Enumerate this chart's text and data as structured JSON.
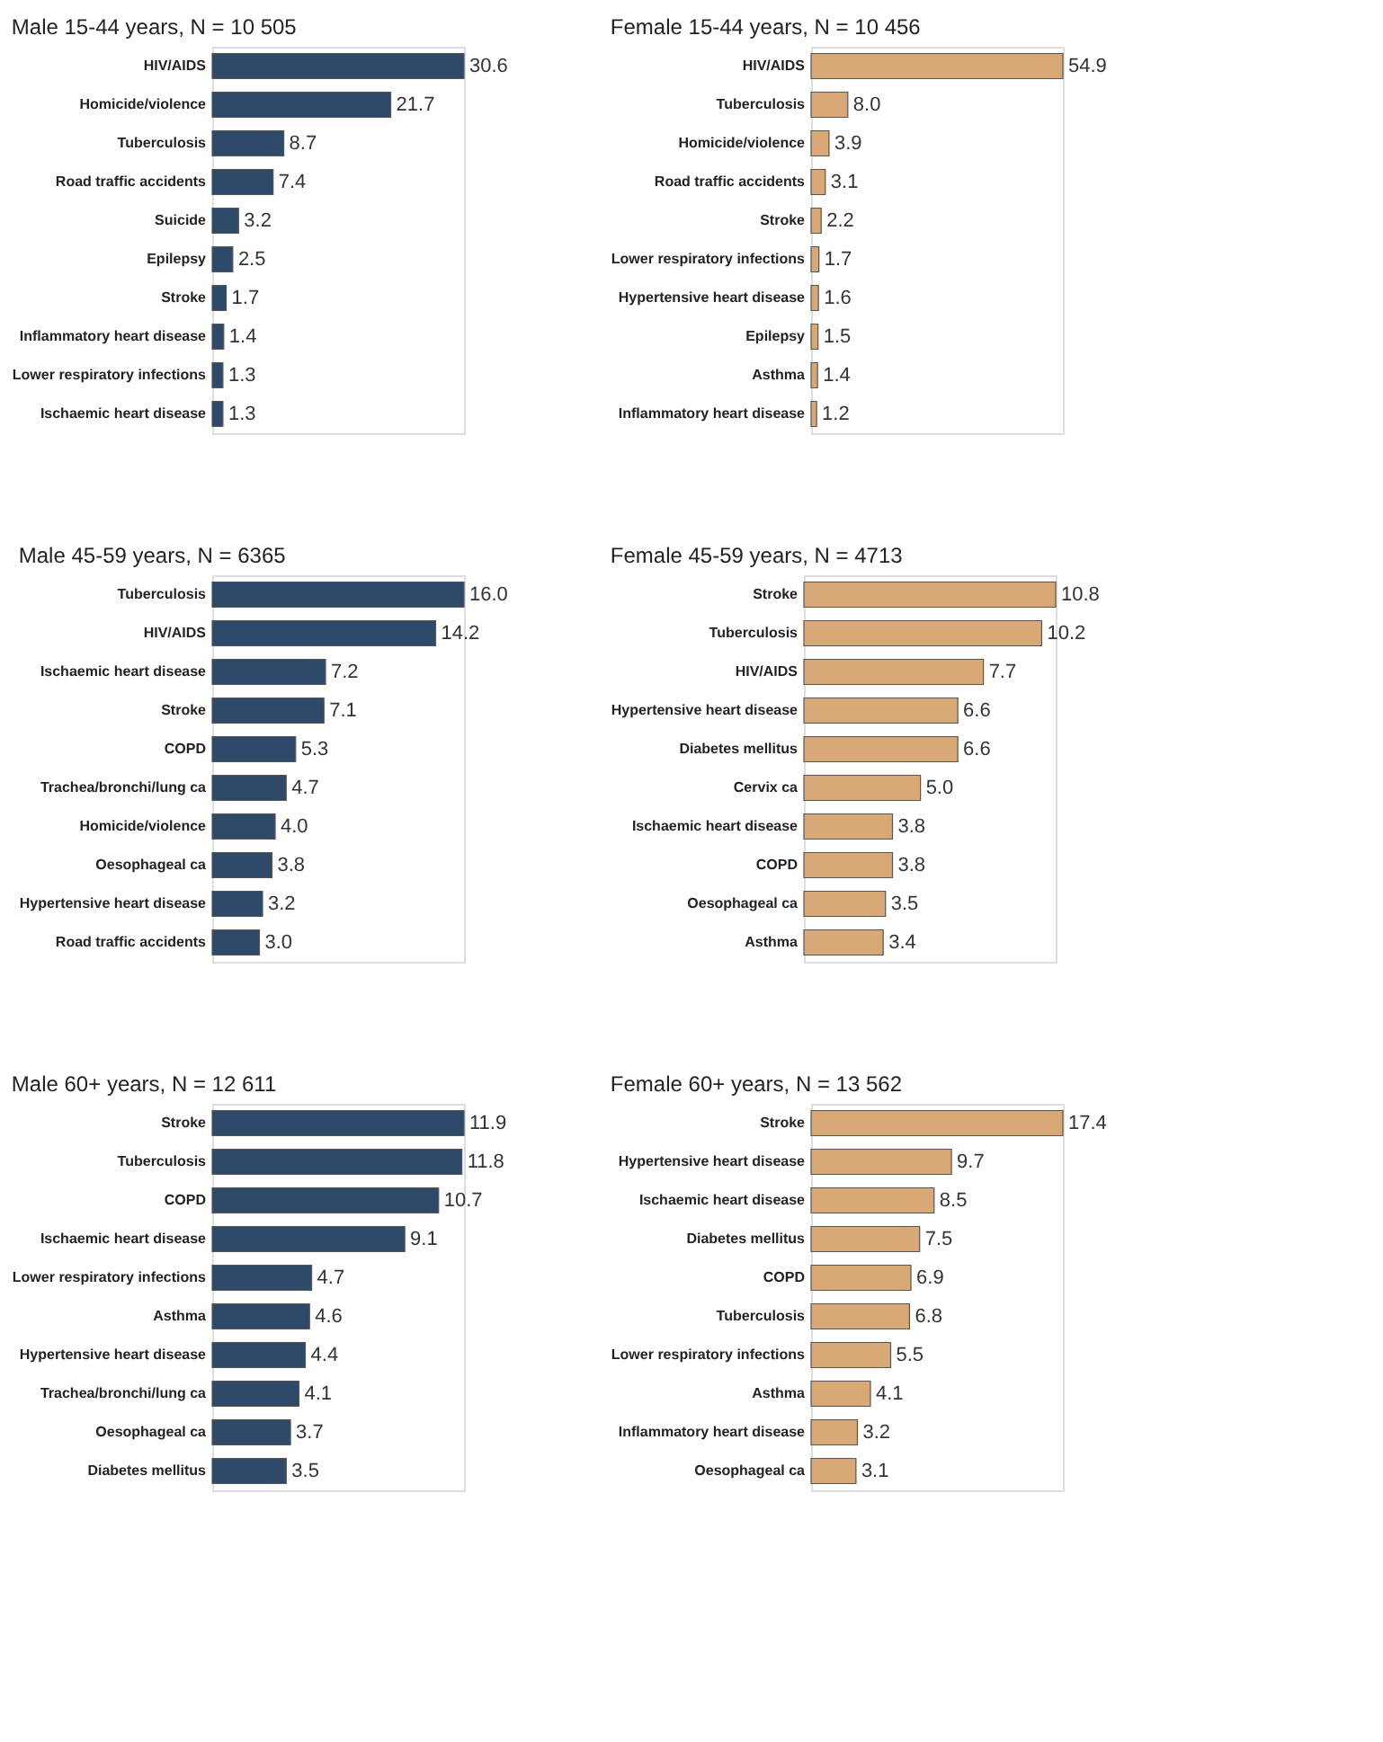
{
  "chart_data": [
    {
      "type": "bar",
      "orientation": "horizontal",
      "title": "Male 15-44 years, N = 10 505",
      "categories": [
        "HIV/AIDS",
        "Homicide/violence",
        "Tuberculosis",
        "Road traffic accidents",
        "Suicide",
        "Epilepsy",
        "Stroke",
        "Inflammatory heart disease",
        "Lower respiratory infections",
        "Ischaemic heart disease"
      ],
      "values": [
        30.6,
        21.7,
        8.7,
        7.4,
        3.2,
        2.5,
        1.7,
        1.4,
        1.3,
        1.3
      ],
      "value_labels": [
        "30.6",
        "21.7",
        "8.7",
        "7.4",
        "3.2",
        "2.5",
        "1.7",
        "1.4",
        "1.3",
        "1.3"
      ],
      "color": "#2f4a68"
    },
    {
      "type": "bar",
      "orientation": "horizontal",
      "title": "Female 15-44 years, N = 10 456",
      "categories": [
        "HIV/AIDS",
        "Tuberculosis",
        "Homicide/violence",
        "Road traffic accidents",
        "Stroke",
        "Lower respiratory infections",
        "Hypertensive heart disease",
        "Epilepsy",
        "Asthma",
        "Inflammatory heart disease"
      ],
      "values": [
        54.9,
        8.0,
        3.9,
        3.1,
        2.2,
        1.7,
        1.6,
        1.5,
        1.4,
        1.2
      ],
      "value_labels": [
        "54.9",
        "8.0",
        "3.9",
        "3.1",
        "2.2",
        "1.7",
        "1.6",
        "1.5",
        "1.4",
        "1.2"
      ],
      "color": "#d8a877"
    },
    {
      "type": "bar",
      "orientation": "horizontal",
      "title": "Male 45-59 years, N = 6365",
      "categories": [
        "Tuberculosis",
        "HIV/AIDS",
        "Ischaemic heart disease",
        "Stroke",
        "COPD",
        "Trachea/bronchi/lung ca",
        "Homicide/violence",
        "Oesophageal ca",
        "Hypertensive heart disease",
        "Road traffic accidents"
      ],
      "values": [
        16.0,
        14.2,
        7.2,
        7.1,
        5.3,
        4.7,
        4.0,
        3.8,
        3.2,
        3.0
      ],
      "value_labels": [
        "16.0",
        "14.2",
        "7.2",
        "7.1",
        "5.3",
        "4.7",
        "4.0",
        "3.8",
        "3.2",
        "3.0"
      ],
      "color": "#2f4a68"
    },
    {
      "type": "bar",
      "orientation": "horizontal",
      "title": "Female 45-59 years, N = 4713",
      "categories": [
        "Stroke",
        "Tuberculosis",
        "HIV/AIDS",
        "Hypertensive heart disease",
        "Diabetes mellitus",
        "Cervix ca",
        "Ischaemic heart disease",
        "COPD",
        "Oesophageal ca",
        "Asthma"
      ],
      "values": [
        10.8,
        10.2,
        7.7,
        6.6,
        6.6,
        5.0,
        3.8,
        3.8,
        3.5,
        3.4
      ],
      "value_labels": [
        "10.8",
        "10.2",
        "7.7",
        "6.6",
        "6.6",
        "5.0",
        "3.8",
        "3.8",
        "3.5",
        "3.4"
      ],
      "color": "#d8a877"
    },
    {
      "type": "bar",
      "orientation": "horizontal",
      "title": "Male 60+ years, N = 12 611",
      "categories": [
        "Stroke",
        "Tuberculosis",
        "COPD",
        "Ischaemic heart disease",
        "Lower respiratory infections",
        "Asthma",
        "Hypertensive heart disease",
        "Trachea/bronchi/lung ca",
        "Oesophageal ca",
        "Diabetes mellitus"
      ],
      "values": [
        11.9,
        11.8,
        10.7,
        9.1,
        4.7,
        4.6,
        4.4,
        4.1,
        3.7,
        3.5
      ],
      "value_labels": [
        "11.9",
        "11.8",
        "10.7",
        "9.1",
        "4.7",
        "4.6",
        "4.4",
        "4.1",
        "3.7",
        "3.5"
      ],
      "color": "#2f4a68"
    },
    {
      "type": "bar",
      "orientation": "horizontal",
      "title": "Female 60+ years, N = 13 562",
      "categories": [
        "Stroke",
        "Hypertensive heart disease",
        "Ischaemic heart disease",
        "Diabetes mellitus",
        "COPD",
        "Tuberculosis",
        "Lower respiratory infections",
        "Asthma",
        "Inflammatory heart disease",
        "Oesophageal ca"
      ],
      "values": [
        17.4,
        9.7,
        8.5,
        7.5,
        6.9,
        6.8,
        5.5,
        4.1,
        3.2,
        3.1
      ],
      "value_labels": [
        "17.4",
        "9.7",
        "8.5",
        "7.5",
        "6.9",
        "6.8",
        "5.5",
        "4.1",
        "3.2",
        "3.1"
      ],
      "color": "#d8a877"
    }
  ]
}
